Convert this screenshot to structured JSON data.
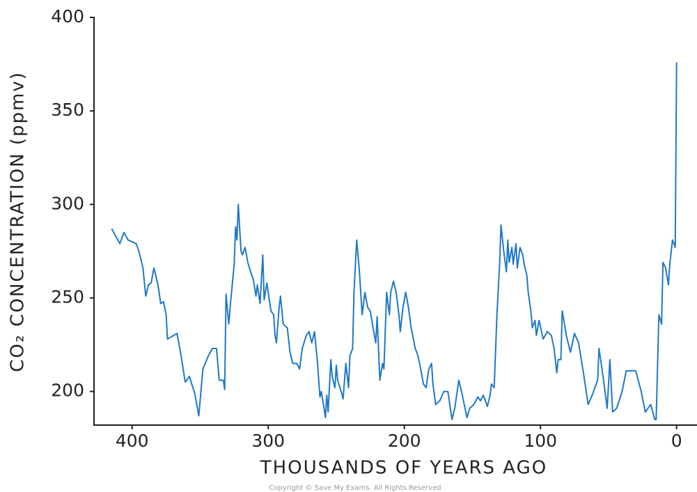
{
  "chart_data": {
    "type": "line",
    "xlabel": "THOUSANDS OF YEARS AGO",
    "ylabel": "CO₂ CONCENTRATION (ppmv)",
    "footer": "Copyright © Save My Exams. All Rights Reserved",
    "xlim": [
      428,
      -15
    ],
    "ylim": [
      182,
      400
    ],
    "xticks": [
      400,
      300,
      200,
      100,
      0
    ],
    "yticks": [
      200,
      250,
      300,
      350,
      400
    ],
    "grid": false,
    "series": [
      {
        "color": "#1f78c8",
        "x": [
          415,
          409,
          406,
          403,
          397,
          395,
          392,
          390,
          388,
          386,
          384,
          381,
          379,
          377,
          375,
          374,
          367,
          364,
          361,
          358,
          354,
          351,
          348,
          344,
          341,
          338,
          336,
          333,
          332,
          331,
          329,
          328,
          325,
          324,
          323,
          322,
          320,
          319,
          317,
          315,
          313,
          311,
          309,
          308,
          306,
          304,
          303,
          301,
          298,
          296,
          295,
          294,
          292,
          291,
          289,
          286,
          284,
          282,
          279,
          277,
          275,
          272,
          270,
          268,
          266,
          264,
          262,
          261,
          259,
          258,
          257,
          256,
          254,
          253,
          251,
          250,
          249,
          246,
          245,
          243,
          241,
          240,
          238,
          237,
          235,
          233,
          231,
          229,
          227,
          225,
          223,
          221,
          220,
          218,
          216,
          215,
          213,
          211,
          210,
          208,
          206,
          204,
          203,
          201,
          199,
          197,
          195,
          192,
          190,
          188,
          186,
          184,
          182,
          180,
          179,
          177,
          174,
          171,
          168,
          165,
          163,
          160,
          158,
          156,
          154,
          152,
          149,
          146,
          144,
          142,
          139,
          137,
          136,
          134,
          132,
          130,
          129,
          127,
          125,
          124,
          123,
          121,
          120,
          118,
          117,
          115,
          113,
          112,
          110,
          109,
          107,
          106,
          104,
          103,
          101,
          98,
          95,
          92,
          90,
          88,
          87,
          85,
          84,
          81,
          78,
          75,
          72,
          68,
          65,
          62,
          58,
          57,
          54,
          51,
          49,
          47,
          44,
          40,
          37,
          30,
          26,
          23,
          19,
          16,
          15,
          13,
          11,
          10,
          8,
          6,
          5,
          3,
          1,
          0
        ],
        "values": [
          287,
          279,
          285,
          281,
          279,
          275,
          266,
          251,
          257,
          258,
          266,
          257,
          247,
          248,
          241,
          228,
          231,
          219,
          205,
          208,
          199,
          187,
          212,
          219,
          223,
          223,
          206,
          206,
          201,
          252,
          236,
          245,
          268,
          288,
          281,
          300,
          275,
          273,
          277,
          269,
          264,
          260,
          251,
          257,
          247,
          273,
          249,
          258,
          243,
          241,
          230,
          226,
          245,
          251,
          236,
          234,
          221,
          215,
          215,
          212,
          223,
          230,
          232,
          226,
          232,
          217,
          197,
          200,
          191,
          186,
          198,
          189,
          217,
          208,
          202,
          214,
          206,
          199,
          196,
          215,
          202,
          219,
          223,
          253,
          281,
          264,
          241,
          253,
          245,
          243,
          234,
          226,
          240,
          206,
          215,
          212,
          253,
          241,
          253,
          259,
          253,
          241,
          232,
          245,
          253,
          245,
          234,
          223,
          219,
          212,
          204,
          202,
          212,
          215,
          204,
          193,
          195,
          200,
          200,
          185,
          191,
          206,
          200,
          193,
          186,
          191,
          193,
          197,
          195,
          198,
          192,
          198,
          204,
          202,
          241,
          268,
          289,
          275,
          264,
          281,
          269,
          277,
          268,
          279,
          266,
          277,
          273,
          268,
          262,
          253,
          243,
          234,
          238,
          230,
          238,
          228,
          232,
          230,
          223,
          210,
          217,
          217,
          243,
          230,
          221,
          231,
          226,
          208,
          193,
          198,
          206,
          223,
          208,
          191,
          217,
          189,
          191,
          200,
          211,
          211,
          200,
          189,
          193,
          185,
          185,
          241,
          236,
          269,
          266,
          257,
          268,
          281,
          277,
          376
        ]
      }
    ]
  }
}
